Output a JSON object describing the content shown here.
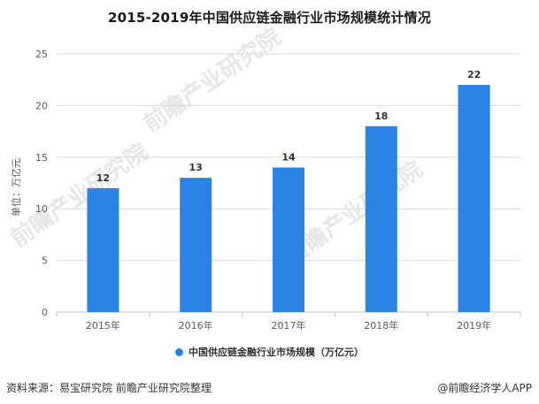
{
  "colors": {
    "bar": "#2a82e4",
    "grid": "#d9d9d9",
    "axis": "#bfbfbf"
  },
  "footer": {
    "source": "资料来源：易宝研究院 前瞻产业研究院整理",
    "credit": "@前瞻经济学人APP"
  },
  "chart_data": {
    "type": "bar",
    "title": "2015-2019年中国供应链金融行业市场规模统计情况",
    "categories": [
      "2015年",
      "2016年",
      "2017年",
      "2018年",
      "2019年"
    ],
    "series": [
      {
        "name": "中国供应链金融行业市场规模（万亿元）",
        "values": [
          12,
          13,
          14,
          18,
          22
        ]
      }
    ],
    "data_labels": [
      "12",
      "13",
      "14",
      "18",
      "22"
    ],
    "ylabel": "单位：万亿元",
    "ylim": [
      0,
      25
    ],
    "yticks": [
      0,
      5,
      10,
      15,
      20,
      25
    ],
    "grid": true,
    "legend_position": "bottom"
  },
  "watermark": {
    "text": "前瞻产业研究院"
  }
}
